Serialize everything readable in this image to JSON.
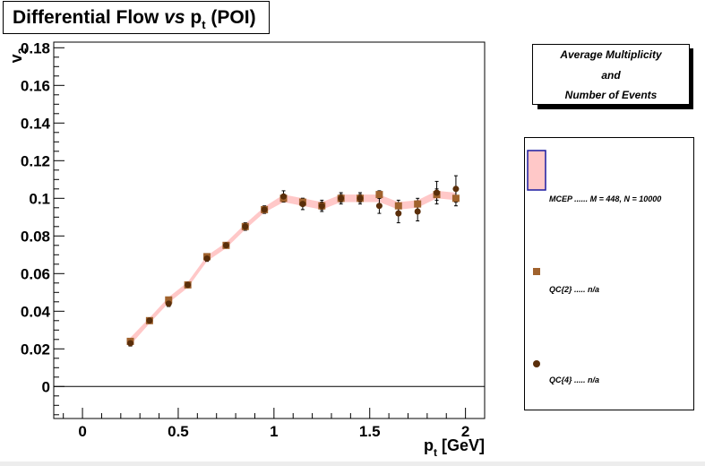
{
  "title": {
    "prefix": "Differential Flow ",
    "vs": "vs",
    "p": " p",
    "sub": "t",
    "suffix": " (POI)"
  },
  "info_box": {
    "line1": "Average Multiplicity",
    "line2": "and",
    "line3": "Number of Events"
  },
  "legend": [
    {
      "label": "MCEP ...... M = 448, N = 10000",
      "marker": "band",
      "color": "#ffc8c8",
      "border": "#1a1aa0"
    },
    {
      "label": "QC{2} ..... n/a",
      "marker": "square",
      "color": "#a0622d"
    },
    {
      "label": "QC{4} ..... n/a",
      "marker": "circle",
      "color": "#5a2e0a"
    }
  ],
  "chart_data": {
    "type": "scatter",
    "title": "Differential Flow vs pt (POI)",
    "xlabel": "p_t [GeV]",
    "ylabel": "v_2",
    "xlim": [
      -0.15,
      2.1
    ],
    "ylim": [
      -0.017,
      0.183
    ],
    "xticks": [
      0,
      0.5,
      1,
      1.5,
      2
    ],
    "xtick_labels": [
      "0",
      "0.5",
      "1",
      "1.5",
      "2"
    ],
    "yticks": [
      0,
      0.02,
      0.04,
      0.06,
      0.08,
      0.1,
      0.12,
      0.14,
      0.16,
      0.18
    ],
    "ytick_labels": [
      "0",
      "0.02",
      "0.04",
      "0.06",
      "0.08",
      "0.1",
      "0.12",
      "0.14",
      "0.16",
      "0.18"
    ],
    "zero_line": true,
    "legend_position": "right",
    "series": [
      {
        "name": "MCEP ...... M = 448, N = 10000",
        "style": "band",
        "color": "#ffc8c8",
        "x": [
          0.25,
          0.35,
          0.45,
          0.55,
          0.65,
          0.75,
          0.85,
          0.95,
          1.05,
          1.15,
          1.25,
          1.35,
          1.45,
          1.55,
          1.65,
          1.75,
          1.85,
          1.95
        ],
        "y": [
          0.024,
          0.035,
          0.046,
          0.054,
          0.068,
          0.075,
          0.085,
          0.094,
          0.1,
          0.098,
          0.096,
          0.1,
          0.1,
          0.1,
          0.096,
          0.097,
          0.102,
          0.101
        ],
        "err": [
          0.002,
          0.0015,
          0.0015,
          0.0015,
          0.0015,
          0.0015,
          0.0015,
          0.0015,
          0.002,
          0.002,
          0.002,
          0.002,
          0.002,
          0.002,
          0.002,
          0.002,
          0.002,
          0.002
        ]
      },
      {
        "name": "QC{2} ..... n/a",
        "style": "square",
        "color": "#a0622d",
        "x": [
          0.25,
          0.35,
          0.45,
          0.55,
          0.65,
          0.75,
          0.85,
          0.95,
          1.05,
          1.15,
          1.25,
          1.35,
          1.45,
          1.55,
          1.65,
          1.75,
          1.85,
          1.95
        ],
        "y": [
          0.024,
          0.035,
          0.046,
          0.054,
          0.069,
          0.075,
          0.085,
          0.094,
          0.1,
          0.098,
          0.096,
          0.1,
          0.1,
          0.102,
          0.096,
          0.097,
          0.102,
          0.1
        ],
        "err": [
          0.001,
          0.001,
          0.001,
          0.001,
          0.001,
          0.001,
          0.001,
          0.001,
          0.002,
          0.002,
          0.002,
          0.002,
          0.002,
          0.002,
          0.003,
          0.003,
          0.003,
          0.004
        ]
      },
      {
        "name": "QC{4} ..... n/a",
        "style": "circle",
        "color": "#5a2e0a",
        "x": [
          0.25,
          0.35,
          0.45,
          0.55,
          0.65,
          0.75,
          0.85,
          0.95,
          1.05,
          1.15,
          1.25,
          1.35,
          1.45,
          1.55,
          1.65,
          1.75,
          1.85,
          1.95
        ],
        "y": [
          0.023,
          0.035,
          0.044,
          0.054,
          0.068,
          0.075,
          0.085,
          0.094,
          0.101,
          0.097,
          0.096,
          0.1,
          0.1,
          0.096,
          0.092,
          0.093,
          0.103,
          0.105
        ],
        "err": [
          0.0015,
          0.0015,
          0.0015,
          0.0015,
          0.0015,
          0.0015,
          0.002,
          0.002,
          0.003,
          0.003,
          0.003,
          0.003,
          0.003,
          0.004,
          0.005,
          0.005,
          0.006,
          0.007
        ]
      }
    ]
  }
}
